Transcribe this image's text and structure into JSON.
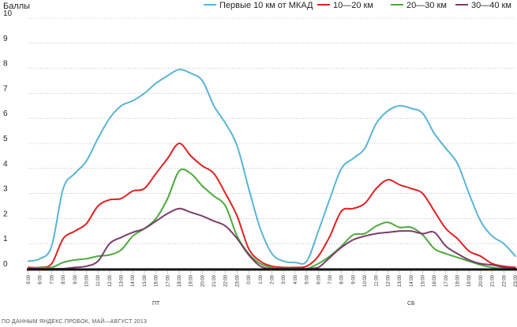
{
  "chart_data": {
    "type": "line",
    "ylabel": "Баллы",
    "ylim": [
      0,
      10
    ],
    "y_ticks": [
      "0",
      "1",
      "2",
      "3",
      "4",
      "5",
      "6",
      "7",
      "8",
      "9",
      "10"
    ],
    "x_ticks": [
      "5:00",
      "6:00",
      "7:00",
      "8:00",
      "9:00",
      "10:00",
      "11:00",
      "12:00",
      "13:00",
      "14:00",
      "15:00",
      "16:00",
      "17:00",
      "18:00",
      "19:00",
      "20:00",
      "21:00",
      "22:00",
      "23:00",
      "0:00",
      "1:00",
      "2:00",
      "3:00",
      "4:00",
      "5:00",
      "6:00",
      "7:00",
      "8:00",
      "9:00",
      "10:00",
      "11:00",
      "12:00",
      "13:00",
      "14:00",
      "15:00",
      "16:00",
      "17:00",
      "18:00",
      "19:00",
      "20:00",
      "21:00",
      "22:00",
      "23:00"
    ],
    "day_labels": [
      {
        "label": "ПТ",
        "center_index": 11
      },
      {
        "label": "СБ",
        "center_index": 33
      }
    ],
    "series": [
      {
        "name": "Первые 10 км от МКАД",
        "color": "#5ab4d6",
        "values": [
          0.3,
          0.4,
          0.9,
          3.2,
          3.8,
          4.3,
          5.2,
          6.0,
          6.5,
          6.7,
          7.0,
          7.4,
          7.7,
          7.95,
          7.8,
          7.5,
          6.5,
          5.8,
          4.9,
          3.2,
          1.6,
          0.6,
          0.3,
          0.25,
          0.3,
          1.5,
          2.8,
          4.0,
          4.4,
          4.8,
          5.8,
          6.3,
          6.5,
          6.4,
          6.2,
          5.4,
          4.8,
          4.2,
          3.0,
          1.9,
          1.3,
          1.0,
          0.5
        ]
      },
      {
        "name": "10—20 км",
        "color": "#e02020",
        "values": [
          0.05,
          0.05,
          0.2,
          1.2,
          1.5,
          1.8,
          2.5,
          2.75,
          2.8,
          3.1,
          3.2,
          3.8,
          4.4,
          5.0,
          4.5,
          4.1,
          3.8,
          3.0,
          2.1,
          0.8,
          0.3,
          0.1,
          0.05,
          0.05,
          0.1,
          0.5,
          1.3,
          2.3,
          2.4,
          2.6,
          3.2,
          3.55,
          3.35,
          3.2,
          3.0,
          2.3,
          1.6,
          1.2,
          0.7,
          0.5,
          0.2,
          0.1,
          0.05
        ]
      },
      {
        "name": "20—30 км",
        "color": "#4caa3c",
        "values": [
          0.0,
          0.05,
          0.05,
          0.25,
          0.35,
          0.4,
          0.5,
          0.55,
          0.75,
          1.3,
          1.6,
          2.0,
          2.8,
          3.9,
          3.8,
          3.3,
          2.9,
          2.5,
          1.3,
          0.6,
          0.2,
          0.05,
          0.0,
          0.0,
          0.0,
          0.2,
          0.5,
          0.9,
          1.35,
          1.4,
          1.7,
          1.85,
          1.65,
          1.65,
          1.35,
          0.8,
          0.6,
          0.45,
          0.3,
          0.15,
          0.05,
          0.0,
          0.0
        ]
      },
      {
        "name": "30—40 км",
        "color": "#7a3d6a",
        "values": [
          0.0,
          0.0,
          0.0,
          0.0,
          0.05,
          0.1,
          0.3,
          1.0,
          1.25,
          1.45,
          1.6,
          1.9,
          2.2,
          2.4,
          2.25,
          2.1,
          1.9,
          1.7,
          1.2,
          0.55,
          0.1,
          0.0,
          0.0,
          0.0,
          0.0,
          0.05,
          0.45,
          0.85,
          1.15,
          1.3,
          1.4,
          1.45,
          1.5,
          1.5,
          1.4,
          1.45,
          0.9,
          0.6,
          0.35,
          0.2,
          0.15,
          0.05,
          0.0
        ]
      }
    ]
  },
  "source_text": "ПО ДАННЫМ ЯНДЕКС.ПРОБОК, МАЙ—АВГУСТ 2013"
}
